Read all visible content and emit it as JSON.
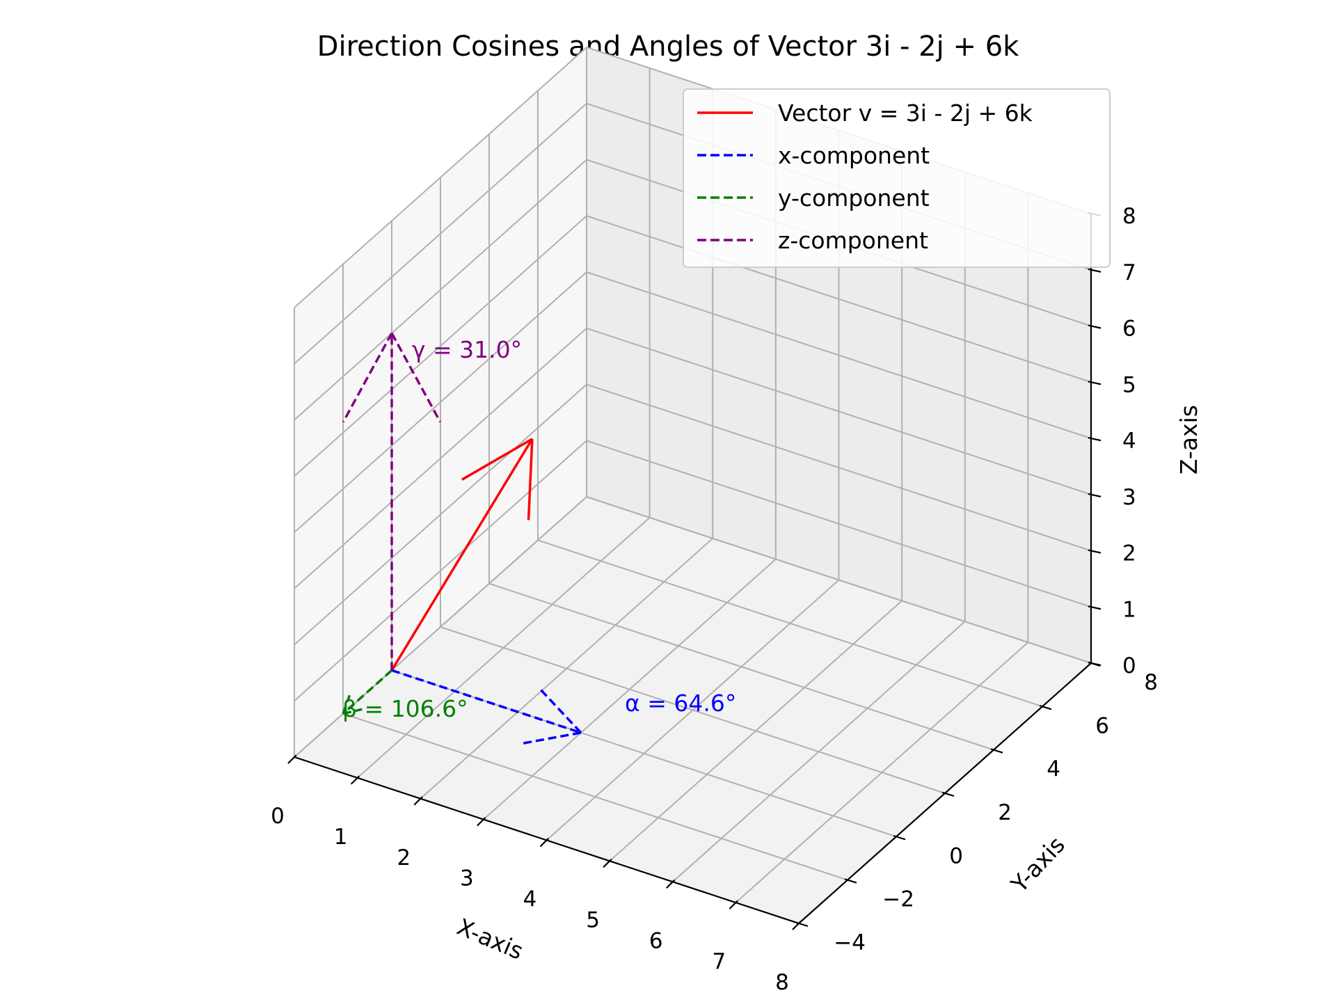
{
  "chart_data": {
    "type": "line",
    "projection": "3d",
    "title": "Direction Cosines and Angles of Vector 3i - 2j + 6k",
    "xlabel": "X-axis",
    "ylabel": "Y-axis",
    "zlabel": "Z-axis",
    "xlim": [
      0,
      8
    ],
    "ylim": [
      -4,
      8
    ],
    "zlim": [
      0,
      8
    ],
    "x_ticks": [
      "0",
      "1",
      "2",
      "3",
      "4",
      "5",
      "6",
      "7",
      "8"
    ],
    "y_ticks": [
      "−4",
      "−2",
      "0",
      "2",
      "4",
      "6",
      "8"
    ],
    "z_ticks": [
      "0",
      "1",
      "2",
      "3",
      "4",
      "5",
      "6",
      "7",
      "8"
    ],
    "grid": true,
    "legend_position": "top-right",
    "series": [
      {
        "name": "Vector v = 3i - 2j + 6k",
        "from": [
          0,
          0,
          0
        ],
        "to": [
          3,
          -2,
          6
        ],
        "color": "#ff0000",
        "style": "solid"
      },
      {
        "name": "x-component",
        "from": [
          0,
          0,
          0
        ],
        "to": [
          3,
          0,
          0
        ],
        "color": "#0000ff",
        "style": "dashed"
      },
      {
        "name": "y-component",
        "from": [
          0,
          0,
          0
        ],
        "to": [
          0,
          -2,
          0
        ],
        "color": "#008000",
        "style": "dashed"
      },
      {
        "name": "z-component",
        "from": [
          0,
          0,
          0
        ],
        "to": [
          0,
          0,
          6
        ],
        "color": "#800080",
        "style": "dashed"
      }
    ],
    "annotations": [
      {
        "text": "α = 64.6°",
        "color": "#0000ff"
      },
      {
        "text": "β = 106.6°",
        "color": "#008000"
      },
      {
        "text": "γ = 31.0°",
        "color": "#800080"
      }
    ]
  }
}
